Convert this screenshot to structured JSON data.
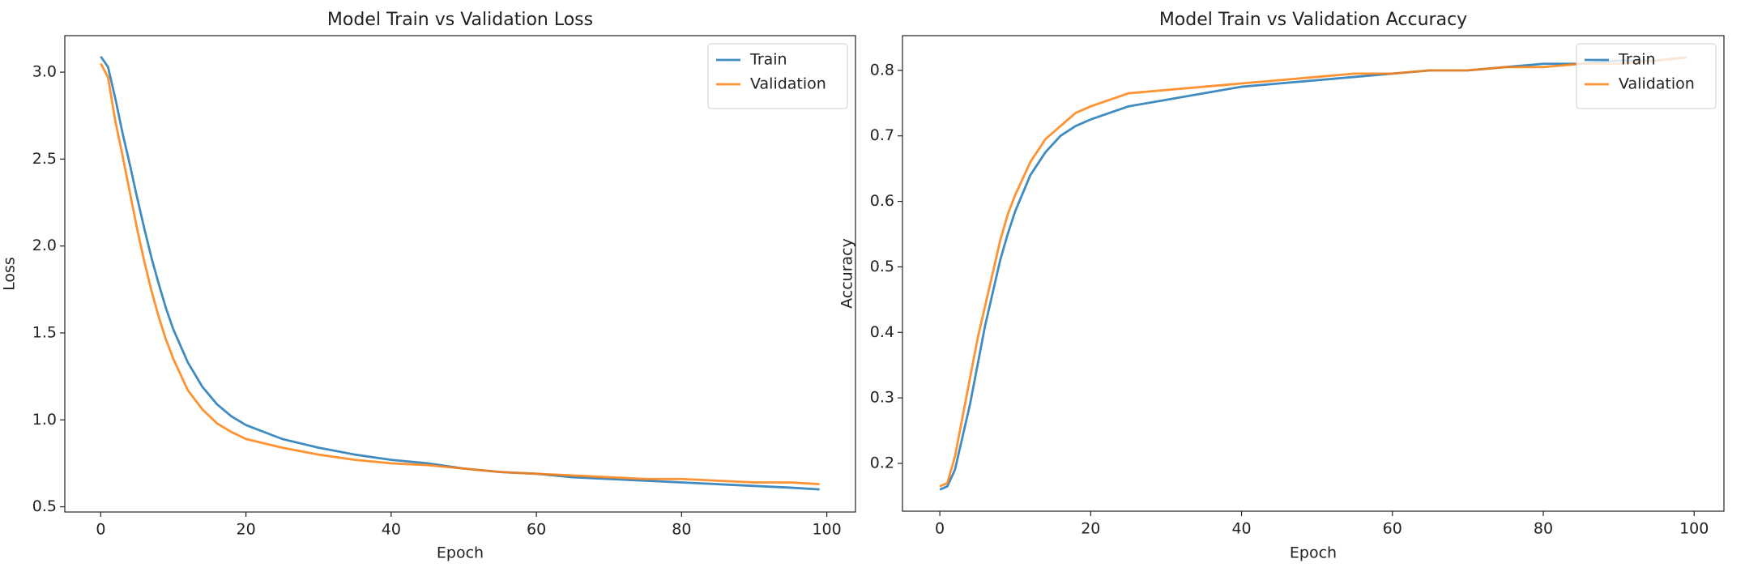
{
  "chart_data": [
    {
      "type": "line",
      "title": "Model Train vs Validation Loss",
      "xlabel": "Epoch",
      "ylabel": "Loss",
      "x": [
        0,
        1,
        2,
        3,
        4,
        5,
        6,
        7,
        8,
        9,
        10,
        12,
        14,
        16,
        18,
        20,
        25,
        30,
        35,
        40,
        45,
        50,
        55,
        60,
        65,
        70,
        75,
        80,
        85,
        90,
        95,
        99
      ],
      "series": [
        {
          "name": "Train",
          "color": "#1f77b4",
          "values": [
            3.09,
            3.03,
            2.85,
            2.65,
            2.47,
            2.28,
            2.1,
            1.93,
            1.78,
            1.64,
            1.52,
            1.33,
            1.19,
            1.09,
            1.02,
            0.97,
            0.89,
            0.84,
            0.8,
            0.77,
            0.75,
            0.72,
            0.7,
            0.69,
            0.67,
            0.66,
            0.65,
            0.64,
            0.63,
            0.62,
            0.61,
            0.6
          ]
        },
        {
          "name": "Validation",
          "color": "#ff7f0e",
          "values": [
            3.05,
            2.97,
            2.72,
            2.52,
            2.31,
            2.1,
            1.91,
            1.74,
            1.59,
            1.46,
            1.35,
            1.17,
            1.06,
            0.98,
            0.93,
            0.89,
            0.84,
            0.8,
            0.77,
            0.75,
            0.74,
            0.72,
            0.7,
            0.69,
            0.68,
            0.67,
            0.66,
            0.66,
            0.65,
            0.64,
            0.64,
            0.63
          ]
        }
      ],
      "xlim": [
        -4.95,
        103.95
      ],
      "ylim": [
        0.47,
        3.21
      ],
      "xticks": [
        0,
        20,
        40,
        60,
        80,
        100
      ],
      "yticks": [
        0.5,
        {
          "value": 1,
          "label": "1.0"
        },
        1.5,
        {
          "value": 2,
          "label": "2.0"
        },
        2.5,
        {
          "value": 3,
          "label": "3.0"
        }
      ],
      "legend": "upper right"
    },
    {
      "type": "line",
      "title": "Model Train vs Validation Accuracy",
      "xlabel": "Epoch",
      "ylabel": "Accuracy",
      "x": [
        0,
        1,
        2,
        3,
        4,
        5,
        6,
        7,
        8,
        9,
        10,
        12,
        14,
        16,
        18,
        20,
        25,
        30,
        35,
        40,
        45,
        50,
        55,
        60,
        65,
        70,
        75,
        80,
        85,
        90,
        95,
        99
      ],
      "series": [
        {
          "name": "Train",
          "color": "#1f77b4",
          "values": [
            0.16,
            0.165,
            0.19,
            0.24,
            0.29,
            0.35,
            0.41,
            0.46,
            0.51,
            0.55,
            0.585,
            0.64,
            0.675,
            0.7,
            0.715,
            0.725,
            0.745,
            0.755,
            0.765,
            0.775,
            0.78,
            0.785,
            0.79,
            0.795,
            0.8,
            0.8,
            0.805,
            0.81,
            0.81,
            0.815,
            0.815,
            0.82
          ]
        },
        {
          "name": "Validation",
          "color": "#ff7f0e",
          "values": [
            0.165,
            0.17,
            0.21,
            0.27,
            0.33,
            0.39,
            0.44,
            0.49,
            0.54,
            0.58,
            0.61,
            0.66,
            0.695,
            0.715,
            0.735,
            0.745,
            0.765,
            0.77,
            0.775,
            0.78,
            0.785,
            0.79,
            0.795,
            0.795,
            0.8,
            0.8,
            0.805,
            0.805,
            0.81,
            0.81,
            0.815,
            0.82
          ]
        }
      ],
      "xlim": [
        -4.95,
        103.95
      ],
      "ylim": [
        0.127,
        0.853
      ],
      "xticks": [
        0,
        20,
        40,
        60,
        80,
        100
      ],
      "yticks": [
        0.2,
        0.3,
        0.4,
        0.5,
        0.6,
        0.7,
        0.8
      ],
      "legend": "upper right"
    }
  ]
}
